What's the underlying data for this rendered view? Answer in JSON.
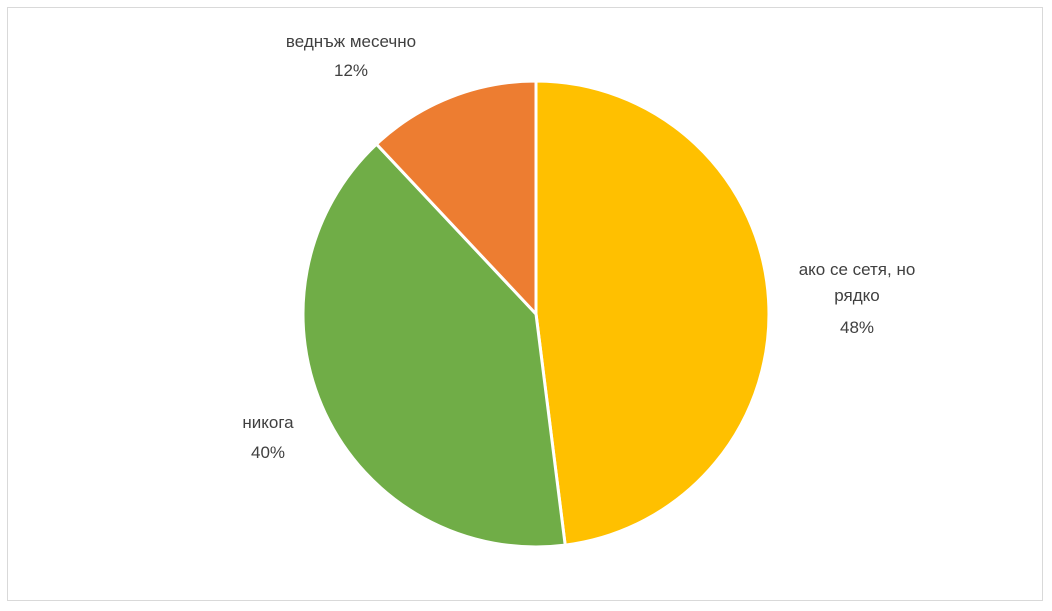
{
  "chart_data": {
    "type": "pie",
    "title": "",
    "slices": [
      {
        "name": "ако се сетя, но",
        "name_line2": "рядко",
        "value": 48,
        "label": "48%",
        "color": "#FFC000"
      },
      {
        "name": "никога",
        "value": 40,
        "label": "40%",
        "color": "#70AD47"
      },
      {
        "name": "веднъж месечно",
        "value": 12,
        "label": "12%",
        "color": "#ED7D31"
      }
    ],
    "legend": "none",
    "grid": false
  }
}
